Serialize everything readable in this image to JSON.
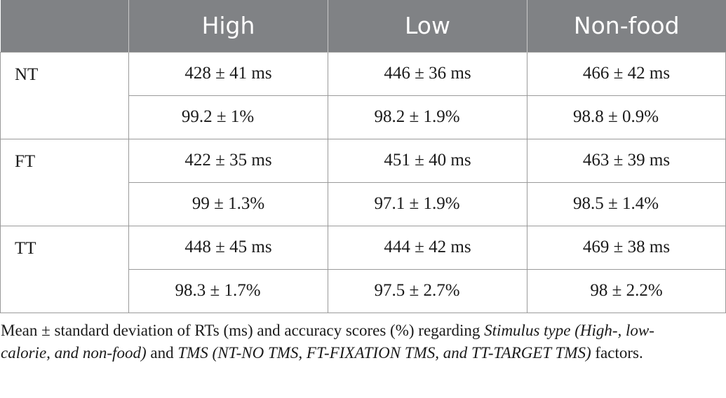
{
  "table": {
    "headers": [
      "",
      "High",
      "Low",
      "Non-food"
    ],
    "groups": [
      {
        "label": "NT",
        "rt": [
          "428 ± 41 ms",
          "446 ± 36 ms",
          "466 ± 42 ms"
        ],
        "acc": [
          "99.2 ± 1%",
          "98.2 ± 1.9%",
          "98.8 ± 0.9%"
        ]
      },
      {
        "label": "FT",
        "rt": [
          "422 ± 35 ms",
          "451 ± 40 ms",
          "463 ± 39 ms"
        ],
        "acc": [
          "99 ± 1.3%",
          "97.1 ± 1.9%",
          "98.5 ± 1.4%"
        ]
      },
      {
        "label": "TT",
        "rt": [
          "448 ± 45 ms",
          "444 ± 42 ms",
          "469 ± 38 ms"
        ],
        "acc": [
          "98.3 ± 1.7%",
          "97.5 ± 2.7%",
          "98 ± 2.2%"
        ]
      }
    ]
  },
  "caption": {
    "part1": "Mean ± standard deviation of RTs (ms) and accuracy scores (%) regarding ",
    "italic1": "Stimulus type (High-, low-calorie, and non-food)",
    "part2": " and ",
    "italic2": "TMS (NT-NO TMS, FT-FIXATION TMS, and TT-TARGET TMS)",
    "part3": " factors."
  }
}
